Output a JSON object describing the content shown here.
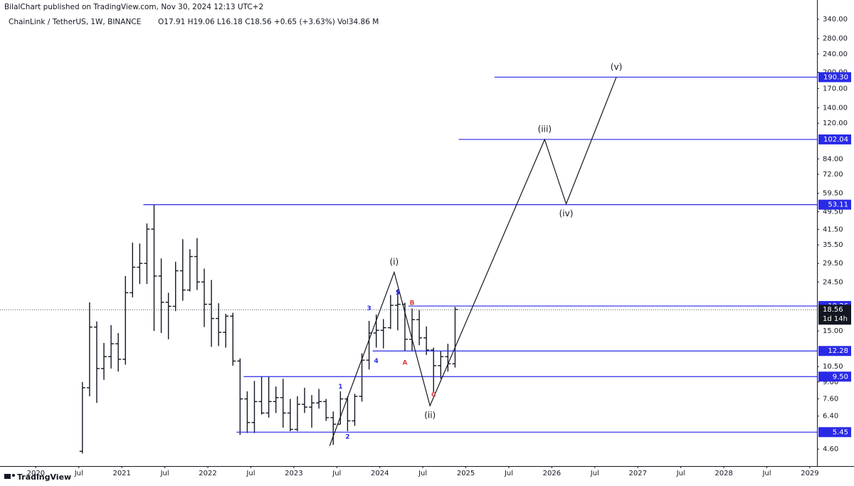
{
  "header": {
    "publisher": "BilalChart published on TradingView.com, Nov 30, 2024 12:13 UTC+2",
    "symbol": "ChainLink / TetherUS, 1W, BINANCE",
    "ohlc_text": "O17.91 H19.06 L16.18 C18.56 +0.65 (+3.63%) Vol34.86 M"
  },
  "footer": {
    "brand": "TradingView"
  },
  "chart_data": {
    "type": "ohlc",
    "log_scale": true,
    "color": "#131722",
    "level_color": "#2a2ae6",
    "xlim": [
      "2019-08",
      "2029-02"
    ],
    "ylim": [
      3.88,
      412
    ],
    "xticks": [
      {
        "value": "2020-01",
        "label": "2020"
      },
      {
        "value": "2020-07",
        "label": "Jul"
      },
      {
        "value": "2021-01",
        "label": "2021"
      },
      {
        "value": "2021-07",
        "label": "Jul"
      },
      {
        "value": "2022-01",
        "label": "2022"
      },
      {
        "value": "2022-07",
        "label": "Jul"
      },
      {
        "value": "2023-01",
        "label": "2023"
      },
      {
        "value": "2023-07",
        "label": "Jul"
      },
      {
        "value": "2024-01",
        "label": "2024"
      },
      {
        "value": "2024-07",
        "label": "Jul"
      },
      {
        "value": "2025-01",
        "label": "2025"
      },
      {
        "value": "2025-07",
        "label": "Jul"
      },
      {
        "value": "2026-01",
        "label": "2026"
      },
      {
        "value": "2026-07",
        "label": "Jul"
      },
      {
        "value": "2027-01",
        "label": "2027"
      },
      {
        "value": "2027-07",
        "label": "Jul"
      },
      {
        "value": "2028-01",
        "label": "2028"
      },
      {
        "value": "2028-07",
        "label": "Jul"
      },
      {
        "value": "2029-01",
        "label": "2029"
      }
    ],
    "yticks": [
      {
        "value": 340,
        "label": "340.00"
      },
      {
        "value": 280,
        "label": "280.00"
      },
      {
        "value": 240,
        "label": "240.00"
      },
      {
        "value": 200,
        "label": "200.00"
      },
      {
        "value": 170,
        "label": "170.00"
      },
      {
        "value": 140,
        "label": "140.00"
      },
      {
        "value": 120,
        "label": "120.00"
      },
      {
        "value": 84,
        "label": "84.00"
      },
      {
        "value": 72,
        "label": "72.00"
      },
      {
        "value": 59.5,
        "label": "59.50"
      },
      {
        "value": 49.5,
        "label": "49.50"
      },
      {
        "value": 41.5,
        "label": "41.50"
      },
      {
        "value": 35.5,
        "label": "35.50"
      },
      {
        "value": 29.5,
        "label": "29.50"
      },
      {
        "value": 24.5,
        "label": "24.50"
      },
      {
        "value": 15,
        "label": "15.00"
      },
      {
        "value": 10.5,
        "label": "10.50"
      },
      {
        "value": 9,
        "label": "9.00"
      },
      {
        "value": 7.6,
        "label": "7.60"
      },
      {
        "value": 6.4,
        "label": "6.40"
      },
      {
        "value": 4.6,
        "label": "4.60"
      }
    ],
    "ohlc": {
      "x": [
        "2020-07",
        "2020-08",
        "2020-09",
        "2020-10",
        "2020-11",
        "2020-12",
        "2021-01",
        "2021-02",
        "2021-03",
        "2021-04",
        "2021-05",
        "2021-06",
        "2021-07",
        "2021-08",
        "2021-09",
        "2021-10",
        "2021-11",
        "2021-12",
        "2022-01",
        "2022-02",
        "2022-03",
        "2022-04",
        "2022-05",
        "2022-06",
        "2022-07",
        "2022-08",
        "2022-09",
        "2022-10",
        "2022-11",
        "2022-12",
        "2023-01",
        "2023-02",
        "2023-03",
        "2023-04",
        "2023-05",
        "2023-06",
        "2023-07",
        "2023-08",
        "2023-09",
        "2023-10",
        "2023-11",
        "2023-12",
        "2024-01",
        "2024-02",
        "2024-03",
        "2024-04",
        "2024-05",
        "2024-06",
        "2024-07",
        "2024-08",
        "2024-09",
        "2024-10",
        "2024-11"
      ],
      "open": [
        4.5,
        8.5,
        15.6,
        10.3,
        11.6,
        13.2,
        11.3,
        22,
        28.4,
        29.5,
        41.6,
        26,
        20,
        19.2,
        27.4,
        22.6,
        31.6,
        24.5,
        19.6,
        17,
        14.8,
        17.4,
        11.1,
        7.6,
        6,
        7.4,
        6.6,
        7.4,
        7.7,
        6.6,
        5.6,
        7.2,
        7,
        7.3,
        7.4,
        6.3,
        5.9,
        7.6,
        6.1,
        7.8,
        11.2,
        14.7,
        15.1,
        15.5,
        19.4,
        19.6,
        13.8,
        16.8,
        14,
        12.4,
        10.6,
        11.6,
        10.8
      ],
      "high": [
        9,
        20,
        16.5,
        13.3,
        15.9,
        14.7,
        26,
        36.3,
        36,
        44,
        53,
        31,
        22,
        30,
        37.6,
        34,
        38,
        28,
        25,
        19.8,
        17.8,
        18,
        11.4,
        8.2,
        9.1,
        9.5,
        9.5,
        8.6,
        9.3,
        7.6,
        7.8,
        8.5,
        7.9,
        8.4,
        7.6,
        6.7,
        8.2,
        7.8,
        8,
        12,
        16.6,
        17.7,
        16.9,
        21.5,
        22.8,
        19.9,
        18.8,
        18.5,
        15.7,
        12.7,
        12.3,
        13.2,
        19.1
      ],
      "low": [
        4.4,
        7.8,
        7.3,
        9.2,
        10.3,
        10,
        10.7,
        21,
        24,
        24,
        15,
        14.7,
        13.8,
        18.3,
        20.3,
        22.3,
        22.6,
        15.6,
        12.8,
        12.9,
        12.7,
        10.6,
        5.3,
        5.4,
        5.4,
        6.5,
        6.3,
        6.6,
        5.7,
        5.5,
        5.5,
        6.6,
        5.7,
        6.9,
        6.1,
        4.8,
        5.9,
        5.5,
        5.8,
        7.4,
        10.2,
        12.7,
        12.6,
        15.3,
        15.1,
        12.3,
        12.3,
        13,
        11.8,
        8.1,
        9.3,
        10,
        10.4
      ],
      "close": [
        8.5,
        15.6,
        10.3,
        11.6,
        13.2,
        11.3,
        22,
        28.4,
        29.5,
        41.6,
        26,
        20,
        19.2,
        27.4,
        22.6,
        31.6,
        24.5,
        19.6,
        17,
        14.8,
        17.4,
        11.1,
        7.6,
        6,
        7.4,
        6.6,
        7.4,
        7.7,
        6.6,
        5.6,
        7.2,
        7,
        7.3,
        7.4,
        6.3,
        5.9,
        7.6,
        6.1,
        7.8,
        11.2,
        14.7,
        15.1,
        15.5,
        19.4,
        19.6,
        13.8,
        16.8,
        14,
        12.4,
        10.6,
        11.6,
        10.8,
        18.6
      ]
    },
    "last_price": {
      "value": 18.56,
      "label": "18.56",
      "countdown": "1d 14h"
    },
    "levels": [
      {
        "value": 190.3,
        "label": "190.30",
        "from": "2025-05"
      },
      {
        "value": 102.04,
        "label": "102.04",
        "from": "2024-12"
      },
      {
        "value": 53.11,
        "label": "53.11",
        "from": "2021-04"
      },
      {
        "value": 19.26,
        "label": "19.26",
        "from": "2024-05"
      },
      {
        "value": 12.28,
        "label": "12.28",
        "from": "2023-12"
      },
      {
        "value": 9.5,
        "label": "9.50",
        "from": "2022-06"
      },
      {
        "value": 5.45,
        "label": "5.45",
        "from": "2022-05"
      }
    ],
    "wave": {
      "x": [
        "2023-06",
        "2024-03",
        "2024-08",
        "2025-12",
        "2026-03",
        "2026-10"
      ],
      "values": [
        4.75,
        27,
        7.1,
        102,
        53.5,
        190.3
      ],
      "labels": [
        null,
        "(i)",
        "(ii)",
        "(iii)",
        "(iv)",
        "(v)"
      ]
    },
    "annotations": [
      {
        "text": "1",
        "x": "2023-07",
        "y": 8.6,
        "color": "#2a2ae6"
      },
      {
        "text": "2",
        "x": "2023-08",
        "y": 5.2,
        "color": "#2a2ae6"
      },
      {
        "text": "3",
        "x": "2023-11",
        "y": 18.8,
        "color": "#2a2ae6"
      },
      {
        "text": "4",
        "x": "2023-12",
        "y": 11.1,
        "color": "#2a2ae6"
      },
      {
        "text": "5",
        "x": "2024-03",
        "y": 22,
        "color": "#2a2ae6"
      },
      {
        "text": "A",
        "x": "2024-04",
        "y": 10.9,
        "color": "#e53935"
      },
      {
        "text": "B",
        "x": "2024-05",
        "y": 19.8,
        "color": "#e53935"
      },
      {
        "text": "C",
        "x": "2024-08",
        "y": 7.9,
        "color": "#e53935"
      }
    ]
  }
}
